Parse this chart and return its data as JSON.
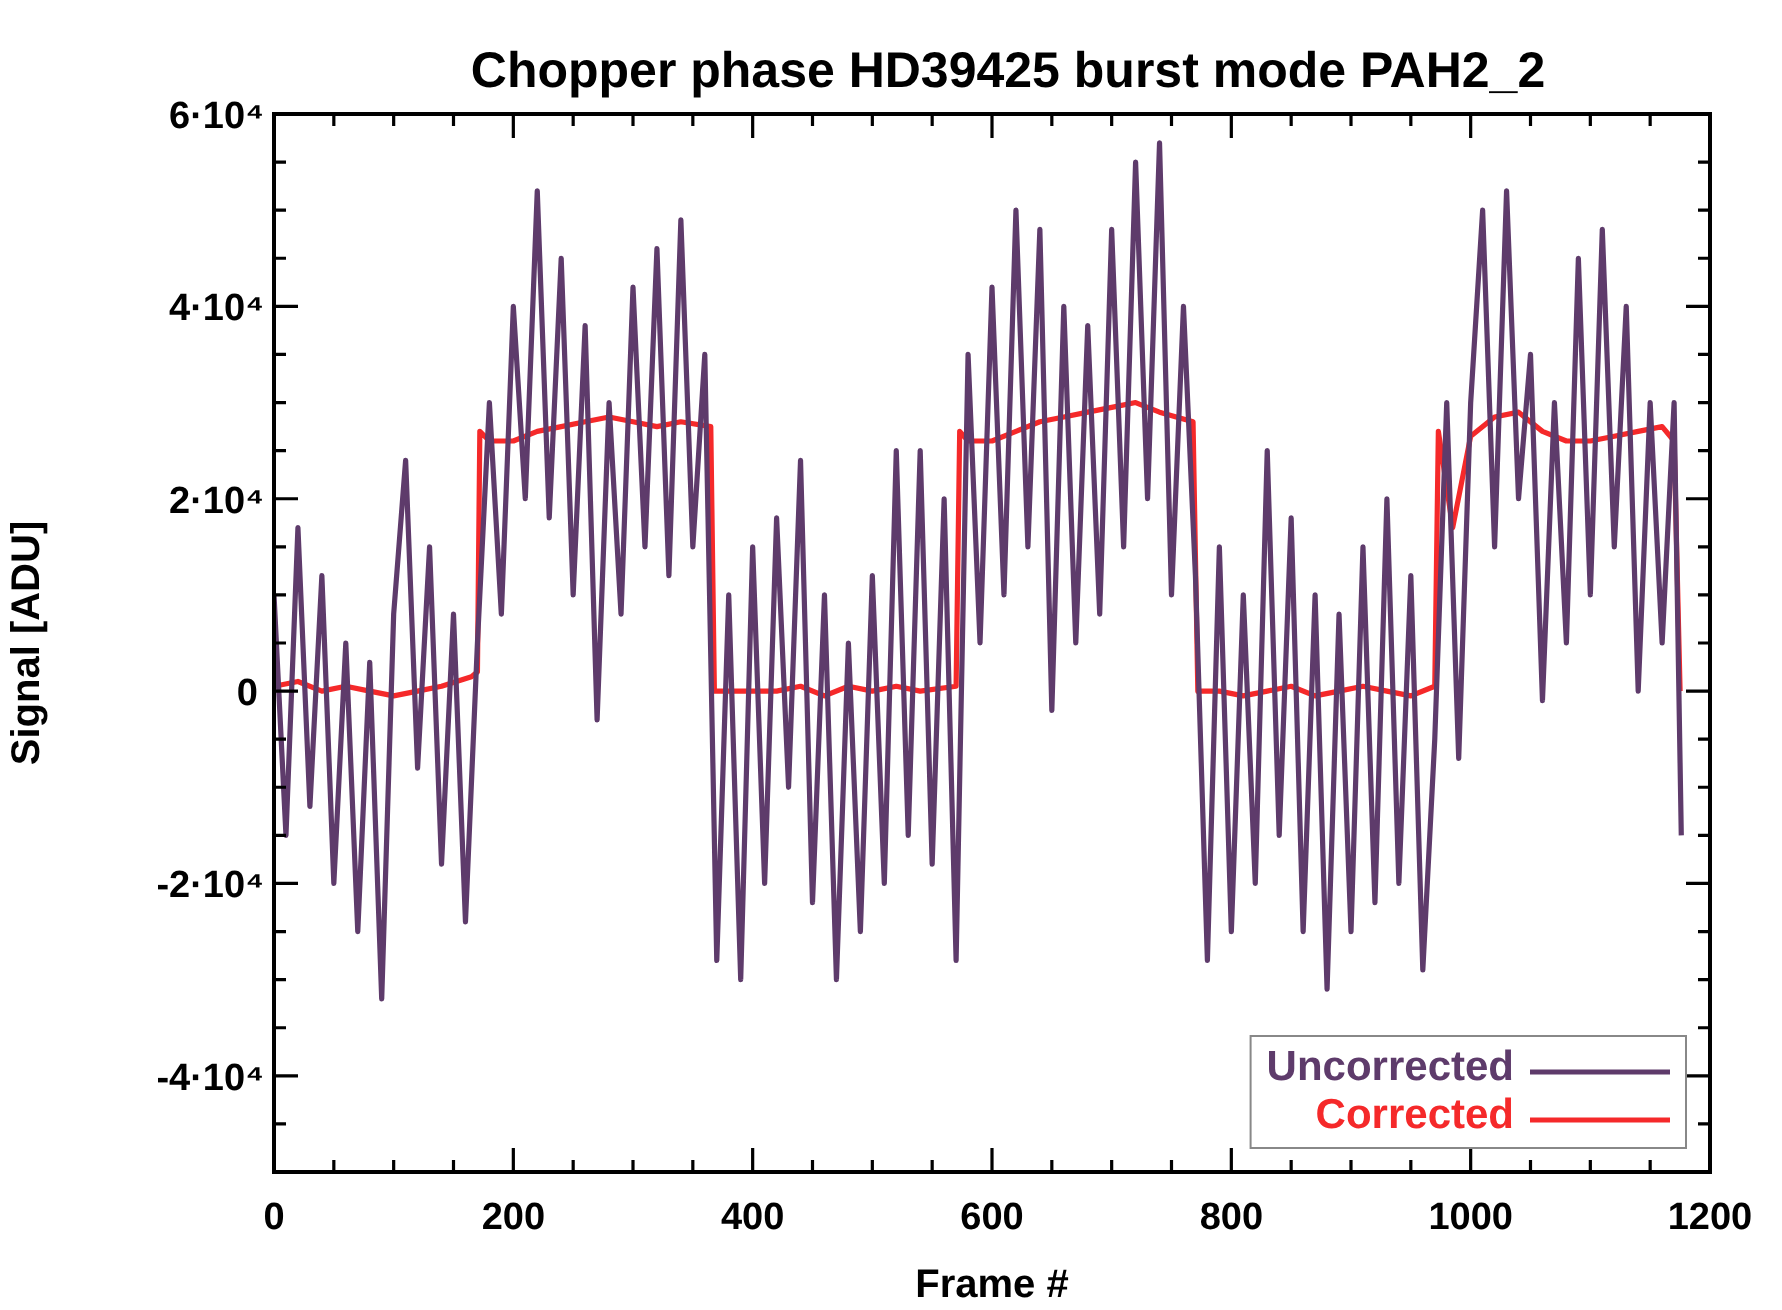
{
  "chart_data": {
    "type": "line",
    "title": "Chopper phase HD39425 burst mode PAH2_2",
    "xlabel": "Frame #",
    "ylabel": "Signal [ADU]",
    "xlim": [
      0,
      1200
    ],
    "ylim": [
      -50000,
      60000
    ],
    "xticks": [
      0,
      {
        "value": 50,
        "label": null
      },
      200,
      {
        "value": 100,
        "label": null
      },
      {
        "value": 150,
        "label": null
      },
      {
        "value": 250,
        "label": null
      },
      {
        "value": 300,
        "label": null
      },
      {
        "value": 350,
        "label": null
      },
      400,
      {
        "value": 450,
        "label": null
      },
      {
        "value": 500,
        "label": null
      },
      {
        "value": 550,
        "label": null
      },
      600,
      {
        "value": 650,
        "label": null
      },
      {
        "value": 700,
        "label": null
      },
      {
        "value": 750,
        "label": null
      },
      800,
      {
        "value": 850,
        "label": null
      },
      {
        "value": 900,
        "label": null
      },
      {
        "value": 950,
        "label": null
      },
      1000,
      {
        "value": 1050,
        "label": null
      },
      {
        "value": 1100,
        "label": null
      },
      {
        "value": 1150,
        "label": null
      },
      1200
    ],
    "yticks": [
      {
        "value": -50000,
        "label": null
      },
      {
        "value": -45000,
        "label": null
      },
      {
        "value": -40000,
        "label": "-4·10⁴"
      },
      {
        "value": -35000,
        "label": null
      },
      {
        "value": -30000,
        "label": null
      },
      {
        "value": -25000,
        "label": null
      },
      {
        "value": -20000,
        "label": "-2·10⁴"
      },
      {
        "value": -15000,
        "label": null
      },
      {
        "value": -10000,
        "label": null
      },
      {
        "value": -5000,
        "label": null
      },
      0,
      {
        "value": 5000,
        "label": null
      },
      {
        "value": 10000,
        "label": null
      },
      {
        "value": 15000,
        "label": null
      },
      {
        "value": 20000,
        "label": "2·10⁴"
      },
      {
        "value": 25000,
        "label": null
      },
      {
        "value": 30000,
        "label": null
      },
      {
        "value": 35000,
        "label": null
      },
      {
        "value": 40000,
        "label": "4·10⁴"
      },
      {
        "value": 45000,
        "label": null
      },
      {
        "value": 50000,
        "label": null
      },
      {
        "value": 55000,
        "label": null
      },
      {
        "value": 60000,
        "label": "6·10⁴"
      }
    ],
    "legend": "bottom right",
    "grid": false,
    "series": [
      {
        "name": "Uncorrected",
        "color": "#5e3b6b",
        "x": [
          0,
          10,
          20,
          30,
          40,
          50,
          60,
          70,
          80,
          90,
          100,
          110,
          120,
          130,
          140,
          150,
          160,
          170,
          180,
          190,
          200,
          210,
          220,
          230,
          240,
          250,
          260,
          270,
          280,
          290,
          300,
          310,
          320,
          330,
          340,
          350,
          360,
          370,
          380,
          390,
          400,
          410,
          420,
          430,
          440,
          450,
          460,
          470,
          480,
          490,
          500,
          510,
          520,
          530,
          540,
          550,
          560,
          570,
          580,
          590,
          600,
          610,
          620,
          630,
          640,
          650,
          660,
          670,
          680,
          690,
          700,
          710,
          720,
          730,
          740,
          750,
          760,
          770,
          780,
          790,
          800,
          810,
          820,
          830,
          840,
          850,
          860,
          870,
          880,
          890,
          900,
          910,
          920,
          930,
          940,
          950,
          960,
          970,
          980,
          990,
          1000,
          1010,
          1020,
          1030,
          1040,
          1050,
          1060,
          1070,
          1080,
          1090,
          1100,
          1110,
          1120,
          1130,
          1140,
          1150,
          1160,
          1170,
          1176
        ],
        "values": [
          10000,
          -15000,
          17000,
          -12000,
          12000,
          -20000,
          5000,
          -25000,
          3000,
          -32000,
          8000,
          24000,
          -8000,
          15000,
          -18000,
          8000,
          -24000,
          5000,
          30000,
          8000,
          40000,
          20000,
          52000,
          18000,
          45000,
          10000,
          38000,
          -3000,
          30000,
          8000,
          42000,
          15000,
          46000,
          12000,
          49000,
          15000,
          35000,
          -28000,
          10000,
          -30000,
          15000,
          -20000,
          18000,
          -10000,
          24000,
          -22000,
          10000,
          -30000,
          5000,
          -25000,
          12000,
          -20000,
          25000,
          -15000,
          25000,
          -18000,
          20000,
          -28000,
          35000,
          5000,
          42000,
          10000,
          50000,
          15000,
          48000,
          -2000,
          40000,
          5000,
          38000,
          8000,
          48000,
          15000,
          55000,
          20000,
          57000,
          10000,
          40000,
          12000,
          -28000,
          15000,
          -25000,
          10000,
          -20000,
          25000,
          -15000,
          18000,
          -25000,
          10000,
          -31000,
          8000,
          -25000,
          15000,
          -22000,
          20000,
          -20000,
          12000,
          -29000,
          -5000,
          30000,
          -7000,
          30000,
          50000,
          15000,
          52000,
          20000,
          35000,
          -1000,
          30000,
          5000,
          45000,
          10000,
          48000,
          15000,
          40000,
          0,
          30000,
          5000,
          30000,
          -15000
        ]
      },
      {
        "name": "Corrected",
        "color": "#f5292a",
        "x": [
          0,
          20,
          40,
          60,
          80,
          100,
          120,
          140,
          165,
          170,
          172,
          180,
          200,
          220,
          240,
          260,
          280,
          300,
          320,
          340,
          365,
          368,
          380,
          400,
          420,
          440,
          460,
          480,
          500,
          520,
          540,
          570,
          573,
          580,
          600,
          620,
          640,
          660,
          680,
          700,
          720,
          740,
          768,
          772,
          790,
          810,
          830,
          850,
          870,
          890,
          910,
          930,
          950,
          970,
          973,
          985,
          1000,
          1020,
          1040,
          1060,
          1080,
          1100,
          1120,
          1140,
          1160,
          1170,
          1175
        ],
        "values": [
          500,
          1000,
          0,
          500,
          0,
          -500,
          0,
          500,
          1500,
          2000,
          27000,
          26000,
          26000,
          27000,
          27500,
          28000,
          28500,
          28000,
          27500,
          28000,
          27500,
          0,
          0,
          0,
          0,
          500,
          -500,
          500,
          0,
          500,
          0,
          500,
          27000,
          26000,
          26000,
          27000,
          28000,
          28500,
          29000,
          29500,
          30000,
          29000,
          28000,
          0,
          0,
          -500,
          0,
          500,
          -500,
          0,
          500,
          0,
          -500,
          500,
          27000,
          17000,
          26500,
          28500,
          29000,
          27000,
          26000,
          26000,
          26500,
          27000,
          27500,
          26000,
          0
        ]
      }
    ]
  }
}
